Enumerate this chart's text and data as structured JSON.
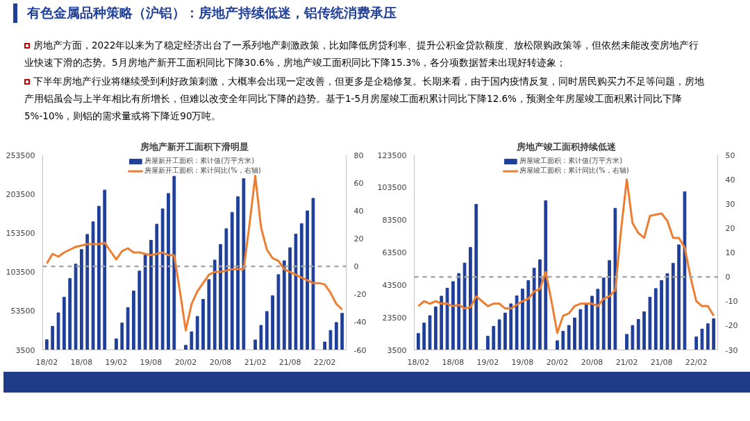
{
  "chart_data": [
    {
      "type": "other",
      "title": "有色金属品种策略（沪铝）：房地产持续低迷，铝传统消费承压",
      "annotations": [
        "房地产方面，2022年以来为了稳定经济出台了一系列地产刺激政策，比如降低房贷利率、提升公积金贷款额度、放松限购政策等，但依然未能改变房地产行业快速下滑的态势。5月房地产新开工面积同比下降30.6%，房地产竣工面积同比下降15.3%，各分项数据暂未出现好转迹象；",
        "下半年房地产行业将继续受到利好政策刺激，大概率会出现一定改善，但更多是企稳修复。长期来看，由于国内疫情反复，同时居民购买力不足等问题，房地产用铝虽会与上半年相比有所增长，但难以改变全年同比下降的趋势。基于1-5月房屋竣工面积累计同比下降12.6%，预测全年房屋竣工面积累计同比下降5%-10%，则铝的需求量或将下降近90万吨。"
      ]
    },
    {
      "type": "bar",
      "title": "房地产新开工面积下滑明显",
      "categories": [
        "18/02",
        null,
        null,
        null,
        null,
        null,
        "18/08",
        null,
        null,
        null,
        null,
        null,
        "19/02",
        null,
        null,
        null,
        null,
        null,
        "19/08",
        null,
        null,
        null,
        null,
        null,
        "20/02",
        null,
        null,
        null,
        null,
        null,
        "20/08",
        null,
        null,
        null,
        null,
        null,
        "21/02",
        null,
        null,
        null,
        null,
        null,
        "21/08",
        null,
        null,
        null,
        null,
        null,
        "22/02",
        null,
        null,
        null
      ],
      "series": [
        {
          "name": "房屋新开工面积：累计值(万平方米)",
          "type": "bar",
          "color": "#1f3f99",
          "values": [
            16600,
            33700,
            51100,
            71200,
            95200,
            113600,
            132300,
            151700,
            167800,
            187800,
            208500,
            null,
            17600,
            38000,
            57700,
            79100,
            104700,
            125100,
            144100,
            164800,
            184500,
            204200,
            226200,
            null,
            9400,
            26800,
            46500,
            68500,
            93800,
            118800,
            138800,
            158900,
            179900,
            200000,
            223300,
            null,
            16300,
            35000,
            52800,
            73100,
            100100,
            117800,
            134600,
            152000,
            165500,
            181900,
            198000,
            null,
            13700,
            28500,
            38700,
            50500
          ]
        },
        {
          "name": "房屋新开工面积：累计同比(%，右轴)",
          "type": "line",
          "axis": "y2",
          "color": "#ed7d31",
          "values": [
            2,
            9,
            7,
            10,
            12,
            14,
            15,
            16,
            16,
            16,
            17,
            11,
            5,
            11,
            13,
            10,
            10,
            9,
            8,
            9,
            10,
            8,
            8,
            -18,
            -46,
            -27,
            -18,
            -12,
            -6,
            -4,
            -4,
            -3,
            -2,
            -2,
            -2,
            30,
            65,
            28,
            12,
            6,
            4,
            -2,
            -4,
            -6,
            -8,
            -10,
            -12,
            -12,
            -13,
            -19,
            -27,
            -31
          ]
        }
      ],
      "ylim": [
        3500,
        253500
      ],
      "yticks": [
        3500,
        53500,
        103500,
        153500,
        203500,
        253500
      ],
      "y2lim": [
        -60,
        80
      ],
      "y2ticks": [
        -60,
        -40,
        -20,
        0,
        20,
        40,
        60,
        80
      ],
      "ref_lines": [
        {
          "axis": "y2",
          "value": 0,
          "color": "#a6a6a6",
          "line_style": "dashed"
        }
      ],
      "legend": "top",
      "grid": false
    },
    {
      "type": "bar",
      "title": "房地产竣工面积持续低迷",
      "categories": [
        "18/02",
        null,
        null,
        null,
        null,
        null,
        "18/08",
        null,
        null,
        null,
        null,
        null,
        "19/02",
        null,
        null,
        null,
        null,
        null,
        "19/08",
        null,
        null,
        null,
        null,
        null,
        "20/02",
        null,
        null,
        null,
        null,
        null,
        "20/08",
        null,
        null,
        null,
        null,
        null,
        "21/02",
        null,
        null,
        null,
        null,
        null,
        "21/08",
        null,
        null,
        null,
        null,
        null,
        "22/02",
        null,
        null,
        null
      ],
      "series": [
        {
          "name": "房屋竣工面积：累计值(万平方米)",
          "type": "bar",
          "color": "#1f3f99",
          "values": [
            13600,
            20100,
            24600,
            30000,
            36600,
            41500,
            45600,
            50600,
            57000,
            66600,
            93100,
            null,
            11900,
            18000,
            22100,
            26200,
            31900,
            36800,
            41000,
            46200,
            53800,
            59000,
            95400,
            null,
            9200,
            15000,
            18600,
            23200,
            28400,
            32200,
            36600,
            40900,
            47800,
            58500,
            90700,
            null,
            13100,
            18600,
            22300,
            27000,
            36000,
            41300,
            46200,
            50500,
            56800,
            68200,
            100900,
            null,
            11500,
            16300,
            19600,
            22700
          ]
        },
        {
          "name": "房屋竣工面积：累计同比(%，右轴)",
          "type": "line",
          "axis": "y2",
          "color": "#ed7d31",
          "values": [
            -12,
            -10,
            -11,
            -10,
            -11,
            -11,
            -12,
            -11.5,
            -13,
            -12.5,
            -8,
            -10,
            -12,
            -11,
            -11,
            -13,
            -13,
            -11.5,
            -10,
            -9,
            -6,
            -5,
            2,
            -10,
            -23,
            -16,
            -15,
            -12,
            -11,
            -11,
            -11,
            -12,
            -9,
            -8,
            -5.5,
            19,
            40,
            22,
            18,
            16,
            25,
            25.5,
            26,
            23,
            16,
            16,
            12,
            0,
            -10,
            -12,
            -12,
            -16
          ]
        }
      ],
      "ylim": [
        3500,
        123500
      ],
      "yticks": [
        3500,
        23500,
        43500,
        63500,
        83500,
        103500,
        123500
      ],
      "y2lim": [
        -30,
        50
      ],
      "y2ticks": [
        -30,
        -20,
        -10,
        0,
        10,
        20,
        30,
        40,
        50
      ],
      "ref_lines": [
        {
          "axis": "y2",
          "value": 0,
          "color": "#a6a6a6",
          "line_style": "dashed"
        }
      ],
      "legend": "top",
      "grid": false
    }
  ]
}
